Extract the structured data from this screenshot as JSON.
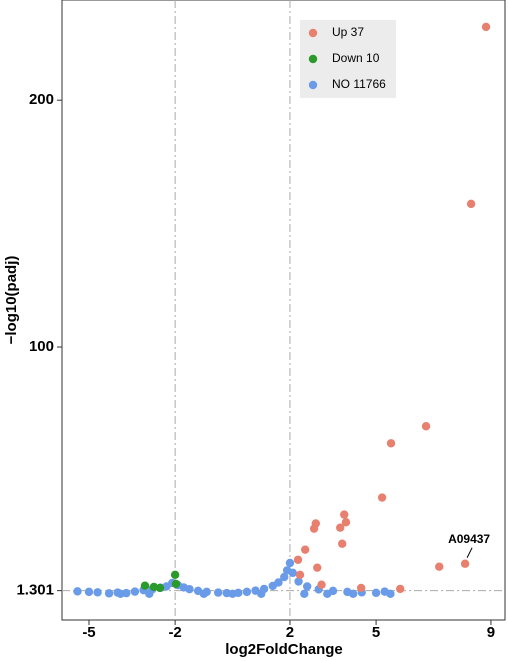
{
  "chart_data": {
    "type": "scatter",
    "x_label": "log2FoldChange",
    "y_label": "−log10(padj)",
    "xlim": [
      -5.94,
      9.49
    ],
    "ylim": [
      -10.6,
      240.6
    ],
    "xticks": [
      -5,
      -2,
      2,
      5,
      9
    ],
    "yticks": [
      1.301,
      100,
      200
    ],
    "vlines": [
      -2,
      2
    ],
    "hline": 1.301,
    "legend_position": "top-right",
    "series": [
      {
        "name": "Up 37",
        "color": "#e8806f",
        "x": [
          8.83,
          8.31,
          6.74,
          5.52,
          5.21,
          3.89,
          3.95,
          2.9,
          2.84,
          3.75,
          3.82,
          2.53,
          2.95,
          7.2,
          8.1,
          2.28,
          2.35,
          3.1,
          5.84,
          4.48
        ],
        "values": [
          229.7,
          158,
          67.9,
          61,
          39,
          32.1,
          29,
          28.5,
          26.4,
          26.8,
          20.3,
          17.9,
          10.6,
          11,
          12.2,
          13.8,
          7.7,
          3.7,
          2,
          2.4
        ]
      },
      {
        "name": "Down 10",
        "color": "#2a9a2a",
        "x": [
          -3.05,
          -2.74,
          -2.53,
          -2.0,
          -1.97
        ],
        "values": [
          3.3,
          2.8,
          2.4,
          7.7,
          4
        ]
      },
      {
        "name": "NO 11766",
        "color": "#6a9be8",
        "x": [
          -5.4,
          -5.0,
          -4.7,
          -4.3,
          -4.0,
          -3.7,
          -3.4,
          -3.1,
          -2.8,
          -2.5,
          -2.3,
          -2.1,
          -1.9,
          -1.7,
          -1.5,
          -1.2,
          -0.9,
          -0.5,
          -0.2,
          0.2,
          0.5,
          0.8,
          1.1,
          1.4,
          1.6,
          1.8,
          1.9,
          2.0,
          2.1,
          2.3,
          2.6,
          3.0,
          3.5,
          4.0,
          4.5,
          5.0,
          5.3,
          -3.9,
          -2.9,
          -1.0,
          0.0,
          1.0,
          2.5,
          3.3,
          4.2,
          5.5
        ],
        "values": [
          1.0,
          0.8,
          0.6,
          0.2,
          0.5,
          0.3,
          0.9,
          1.5,
          1.8,
          2.5,
          3.0,
          4.4,
          3.5,
          2.6,
          1.9,
          1.2,
          0.8,
          0.5,
          0.3,
          0.4,
          0.8,
          1.3,
          2.0,
          3.2,
          4.6,
          6.8,
          9.5,
          12.5,
          8.5,
          5.0,
          3.0,
          1.8,
          1.2,
          0.8,
          0.6,
          0.4,
          0.9,
          0,
          0,
          0,
          0,
          0,
          0,
          0,
          0,
          0
        ]
      }
    ],
    "annotations": [
      {
        "text": "A09437",
        "x": 8.1,
        "y": 12.2
      }
    ]
  }
}
